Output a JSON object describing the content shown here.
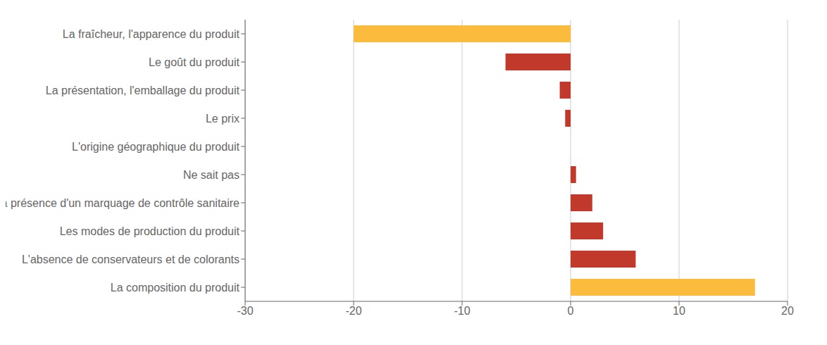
{
  "chart_data": {
    "type": "bar",
    "orientation": "horizontal",
    "categories": [
      "La fraîcheur, l'apparence du produit",
      "Le goût du produit",
      "La présentation, l'emballage du produit",
      "Le prix",
      "L'origine géographique du produit",
      "Ne sait pas",
      "La présence d'un marquage de contrôle sanitaire",
      "Les modes de production du produit",
      "L'absence de conservateurs et de colorants",
      "La composition du produit"
    ],
    "values": [
      -20,
      -6,
      -1,
      -0.5,
      0,
      0.5,
      2,
      3,
      6,
      17
    ],
    "colors": [
      "#FBBC3D",
      "#C0392B",
      "#C0392B",
      "#C0392B",
      "#C0392B",
      "#C0392B",
      "#C0392B",
      "#C0392B",
      "#C0392B",
      "#FBBC3D"
    ],
    "xlim": [
      -30,
      20
    ],
    "xticks": [
      -30,
      -20,
      -10,
      0,
      10,
      20
    ],
    "grid": true
  }
}
